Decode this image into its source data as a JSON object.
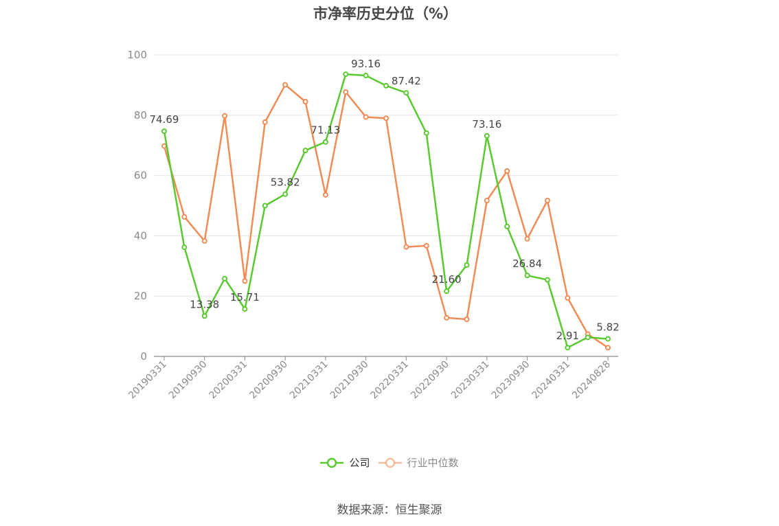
{
  "chart_data": {
    "type": "line",
    "title": "市净率历史分位（%）",
    "source": "数据来源：恒生聚源",
    "ylim": [
      0,
      100
    ],
    "yticks": [
      0,
      20,
      40,
      60,
      80,
      100
    ],
    "x_tick_labels": [
      "20190331",
      "20190930",
      "20200331",
      "20200930",
      "20210331",
      "20210930",
      "20220331",
      "20220930",
      "20230331",
      "20230930",
      "20240331",
      "20240828"
    ],
    "x": [
      "20190331",
      "20190630",
      "20190930",
      "20191231",
      "20200331",
      "20200630",
      "20200930",
      "20201231",
      "20210331",
      "20210630",
      "20210930",
      "20211231",
      "20220331",
      "20220630",
      "20220930",
      "20221231",
      "20230331",
      "20230630",
      "20230930",
      "20231231",
      "20240331",
      "20240630",
      "20240828"
    ],
    "grid": true,
    "legend_position": "bottom",
    "series": [
      {
        "name": "公司",
        "color": "#5ac831",
        "values": [
          74.69,
          36.2,
          13.38,
          25.8,
          15.71,
          50.0,
          53.82,
          68.3,
          71.13,
          93.6,
          93.16,
          89.8,
          87.42,
          74.1,
          21.6,
          30.3,
          73.16,
          43.1,
          26.84,
          25.4,
          2.91,
          6.3,
          5.82
        ],
        "labels": {
          "0": "74.69",
          "2": "13.38",
          "4": "15.71",
          "6": "53.82",
          "8": "71.13",
          "10": "93.16",
          "12": "87.42",
          "14": "21.60",
          "16": "73.16",
          "18": "26.84",
          "20": "2.91",
          "22": "5.82"
        }
      },
      {
        "name": "行业中位数",
        "color": "#f08b55",
        "values": [
          69.8,
          46.3,
          38.3,
          79.8,
          25.0,
          77.7,
          90.1,
          84.5,
          53.6,
          87.7,
          79.4,
          79.0,
          36.3,
          36.7,
          12.8,
          12.3,
          51.7,
          61.5,
          39.0,
          51.7,
          19.4,
          7.4,
          2.9
        ]
      }
    ]
  }
}
